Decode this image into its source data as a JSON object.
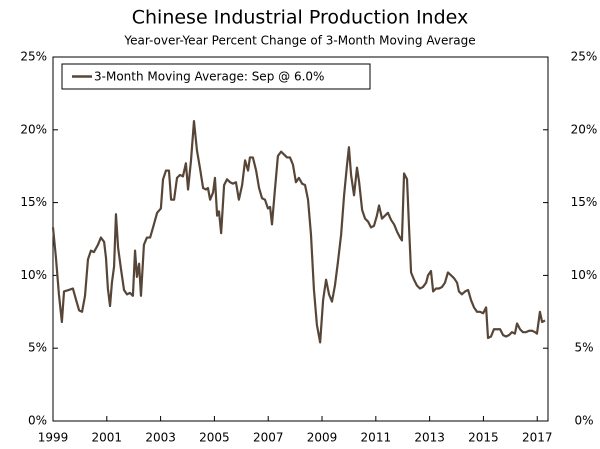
{
  "chart_data": {
    "type": "line",
    "title": "Chinese Industrial Production Index",
    "subtitle": "Year-over-Year Percent Change of 3-Month Moving Average",
    "x": [
      1999.0,
      1999.11,
      1999.22,
      1999.33,
      1999.41,
      1999.59,
      1999.74,
      1999.86,
      1999.97,
      2000.08,
      2000.19,
      2000.3,
      2000.41,
      2000.52,
      2000.67,
      2000.78,
      2000.9,
      2000.97,
      2001.04,
      2001.12,
      2001.19,
      2001.27,
      2001.34,
      2001.42,
      2001.53,
      2001.64,
      2001.75,
      2001.86,
      2001.97,
      2002.05,
      2002.12,
      2002.2,
      2002.27,
      2002.38,
      2002.49,
      2002.61,
      2002.72,
      2002.87,
      2003.01,
      2003.09,
      2003.2,
      2003.31,
      2003.39,
      2003.5,
      2003.61,
      2003.72,
      2003.83,
      2003.94,
      2004.02,
      2004.13,
      2004.24,
      2004.35,
      2004.46,
      2004.58,
      2004.69,
      2004.76,
      2004.84,
      2004.95,
      2005.02,
      2005.1,
      2005.17,
      2005.25,
      2005.36,
      2005.47,
      2005.58,
      2005.69,
      2005.8,
      2005.91,
      2006.03,
      2006.14,
      2006.25,
      2006.32,
      2006.43,
      2006.55,
      2006.66,
      2006.77,
      2006.88,
      2006.99,
      2007.07,
      2007.14,
      2007.25,
      2007.36,
      2007.48,
      2007.59,
      2007.7,
      2007.81,
      2007.92,
      2008.03,
      2008.14,
      2008.26,
      2008.37,
      2008.48,
      2008.59,
      2008.7,
      2008.81,
      2008.93,
      2009.04,
      2009.15,
      2009.26,
      2009.37,
      2009.48,
      2009.59,
      2009.71,
      2009.82,
      2009.93,
      2010.0,
      2010.08,
      2010.19,
      2010.3,
      2010.38,
      2010.49,
      2010.6,
      2010.71,
      2010.82,
      2010.93,
      2011.04,
      2011.12,
      2011.23,
      2011.34,
      2011.45,
      2011.57,
      2011.68,
      2011.79,
      2011.9,
      2011.97,
      2012.05,
      2012.16,
      2012.23,
      2012.31,
      2012.42,
      2012.53,
      2012.64,
      2012.75,
      2012.87,
      2012.94,
      2013.05,
      2013.13,
      2013.24,
      2013.35,
      2013.46,
      2013.57,
      2013.68,
      2013.8,
      2013.91,
      2014.02,
      2014.09,
      2014.2,
      2014.32,
      2014.43,
      2014.54,
      2014.65,
      2014.76,
      2014.87,
      2014.99,
      2015.1,
      2015.17,
      2015.28,
      2015.39,
      2015.51,
      2015.62,
      2015.73,
      2015.84,
      2015.95,
      2016.06,
      2016.17,
      2016.25,
      2016.36,
      2016.47,
      2016.58,
      2016.7,
      2016.81,
      2016.92,
      2016.99,
      2017.1,
      2017.18,
      2017.29
    ],
    "series": [
      {
        "name": "3-Month Moving Average: Sep @ 6.0%",
        "color": "#574638",
        "values": [
          13.3,
          11.2,
          8.7,
          6.8,
          8.9,
          9.0,
          9.1,
          8.3,
          7.6,
          7.5,
          8.6,
          11.1,
          11.7,
          11.6,
          12.1,
          12.6,
          12.3,
          11.2,
          9.1,
          7.9,
          9.5,
          10.6,
          14.2,
          11.9,
          10.4,
          9.0,
          8.7,
          8.8,
          8.6,
          11.7,
          9.9,
          10.8,
          8.6,
          12.1,
          12.6,
          12.6,
          13.3,
          14.3,
          14.6,
          16.6,
          17.2,
          17.2,
          15.2,
          15.2,
          16.7,
          16.9,
          16.8,
          17.7,
          15.9,
          17.9,
          20.6,
          18.6,
          17.4,
          16.0,
          15.9,
          16.0,
          15.2,
          15.7,
          16.7,
          14.1,
          14.4,
          12.9,
          16.2,
          16.6,
          16.4,
          16.3,
          16.4,
          15.2,
          16.2,
          17.9,
          17.2,
          18.1,
          18.1,
          17.2,
          16.0,
          15.3,
          15.2,
          14.6,
          14.7,
          13.5,
          15.9,
          18.2,
          18.5,
          18.3,
          18.1,
          18.1,
          17.6,
          16.4,
          16.7,
          16.3,
          16.2,
          15.2,
          12.8,
          9.0,
          6.6,
          5.4,
          8.3,
          9.7,
          8.7,
          8.2,
          9.3,
          10.9,
          12.8,
          15.5,
          17.6,
          18.8,
          16.9,
          15.5,
          17.4,
          16.4,
          14.5,
          13.9,
          13.7,
          13.3,
          13.4,
          14.1,
          14.8,
          13.9,
          14.1,
          14.3,
          13.8,
          13.5,
          13.0,
          12.6,
          12.4,
          17.0,
          16.6,
          13.5,
          10.2,
          9.7,
          9.3,
          9.1,
          9.2,
          9.5,
          10.0,
          10.3,
          8.9,
          9.1,
          9.1,
          9.2,
          9.5,
          10.2,
          10.0,
          9.8,
          9.5,
          8.9,
          8.7,
          8.9,
          9.0,
          8.3,
          7.8,
          7.5,
          7.5,
          7.4,
          7.8,
          5.7,
          5.8,
          6.3,
          6.3,
          6.3,
          5.9,
          5.8,
          5.9,
          6.1,
          6.0,
          6.7,
          6.3,
          6.1,
          6.1,
          6.2,
          6.2,
          6.1,
          6.0,
          7.5,
          6.8,
          6.9
        ]
      }
    ],
    "xlim": [
      1999,
      2017.4
    ],
    "xticks": [
      1999,
      2001,
      2003,
      2005,
      2007,
      2009,
      2011,
      2013,
      2015,
      2017
    ],
    "ylim": [
      0,
      25
    ],
    "yticks": [
      {
        "value": 0,
        "label": "0%"
      },
      {
        "value": 5,
        "label": "5%"
      },
      {
        "value": 10,
        "label": "10%"
      },
      {
        "value": 15,
        "label": "15%"
      },
      {
        "value": 20,
        "label": "20%"
      },
      {
        "value": 25,
        "label": "25%"
      }
    ],
    "legend": "upper left"
  }
}
